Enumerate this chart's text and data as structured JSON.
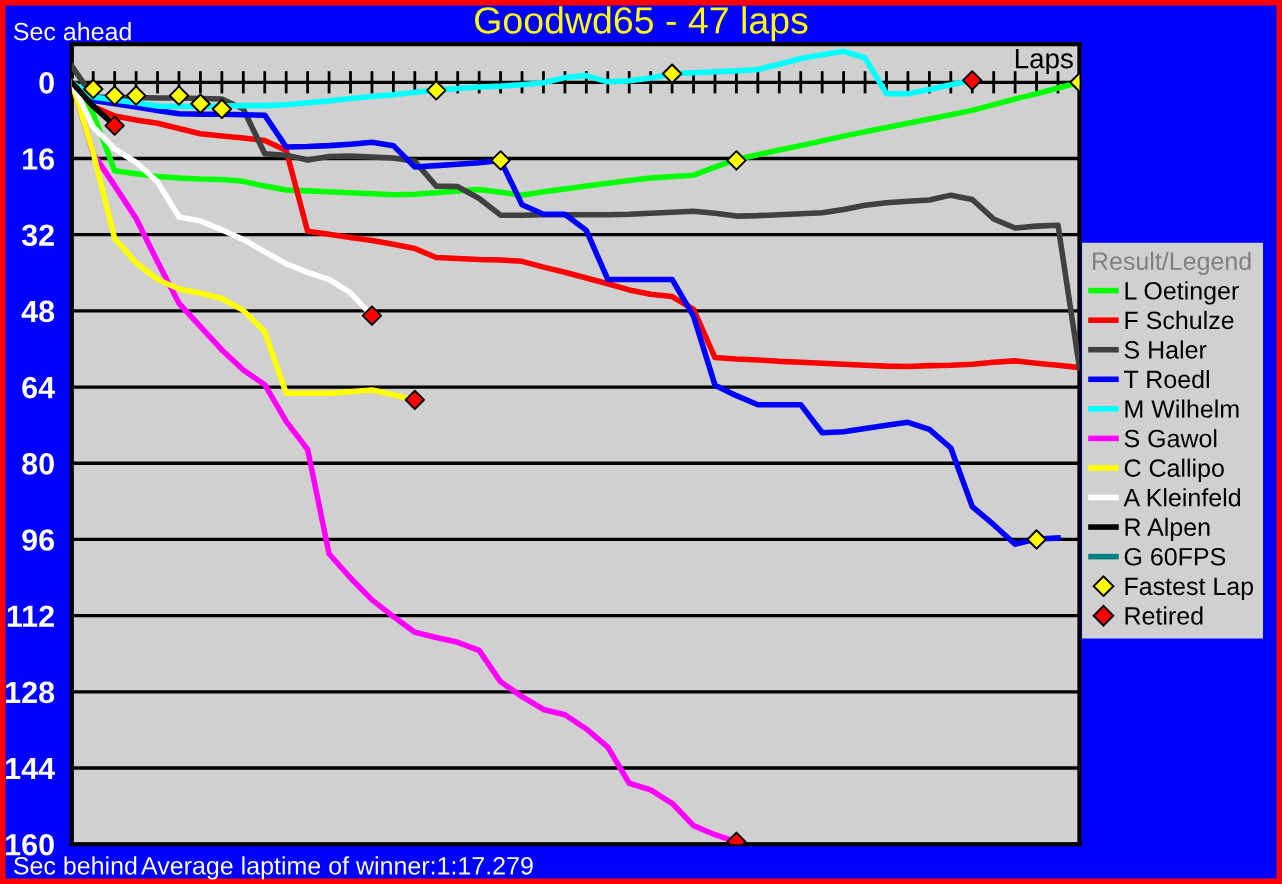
{
  "chart_data": {
    "type": "line",
    "title": "Goodwd65 - 47 laps",
    "xlabel": "Laps",
    "annotations": [
      "Sec ahead",
      "Sec behind",
      "Average laptime of winner:1:17.279"
    ],
    "categories": [
      null,
      null,
      null,
      null,
      null,
      null,
      null,
      null,
      null,
      null,
      null,
      null,
      null,
      null,
      null,
      null,
      null,
      null,
      null,
      null,
      null,
      null,
      null,
      null,
      null,
      null,
      null,
      null,
      null,
      null,
      null,
      null,
      null,
      null,
      null,
      null,
      null,
      null,
      null,
      null,
      null,
      null,
      null,
      null,
      null,
      null,
      null,
      null
    ],
    "ylim": [
      160,
      -8
    ],
    "yticks": [
      0,
      16,
      32,
      48,
      64,
      80,
      96,
      112,
      128,
      144,
      160
    ],
    "tick_labels": "y",
    "grid": "y",
    "legend": "right",
    "legend_title": "Result/Legend",
    "line_style": "solid",
    "series": [
      {
        "name": "L Oetinger",
        "color": "#00ff00",
        "values": [
          0,
          6.6,
          18.6,
          19.2,
          19.8,
          20.1,
          20.3,
          20.4,
          20.8,
          21.8,
          22.6,
          22.8,
          23.0,
          23.2,
          23.4,
          23.6,
          23.5,
          23.2,
          22.8,
          22.5,
          23.1,
          23.7,
          23.0,
          22.4,
          21.8,
          21.2,
          20.6,
          20.1,
          19.8,
          19.5,
          17.8,
          16.2,
          15.2,
          14.2,
          13.3,
          12.3,
          11.3,
          10.4,
          9.5,
          8.6,
          7.7,
          6.8,
          5.9,
          4.7,
          3.5,
          2.4,
          1.2,
          0
        ]
      },
      {
        "name": "F Schulze",
        "color": "#ff0000",
        "values": [
          0,
          5.1,
          7.1,
          7.9,
          8.6,
          9.7,
          10.8,
          11.3,
          11.7,
          12.2,
          14.3,
          31.3,
          31.9,
          32.6,
          33.2,
          34.0,
          34.9,
          36.8,
          37.0,
          37.2,
          37.3,
          37.6,
          38.8,
          39.9,
          41.1,
          42.3,
          43.6,
          44.5,
          45.0,
          47.7,
          57.8,
          58.1,
          58.3,
          58.6,
          58.8,
          59.0,
          59.2,
          59.4,
          59.6,
          59.7,
          59.5,
          59.4,
          59.2,
          58.8,
          58.5,
          59.0,
          59.4,
          59.9
        ]
      },
      {
        "name": "S Haler",
        "color": "#404040",
        "values": [
          -3.4,
          3.1,
          3.2,
          3.2,
          3.3,
          3.3,
          3.4,
          3.5,
          5.6,
          15.0,
          15.3,
          16.3,
          15.6,
          15.5,
          15.7,
          15.9,
          16.6,
          21.8,
          21.9,
          24.4,
          27.9,
          27.9,
          27.8,
          27.8,
          27.8,
          27.8,
          27.7,
          27.5,
          27.3,
          27.1,
          27.5,
          28.1,
          28.0,
          27.8,
          27.6,
          27.4,
          26.7,
          25.8,
          25.3,
          25.0,
          24.7,
          23.7,
          24.6,
          28.7,
          30.6,
          30.2,
          30.0,
          59.9
        ]
      },
      {
        "name": "T Roedl",
        "color": "#0000ff",
        "values": [
          0,
          3.8,
          4.5,
          5.2,
          5.9,
          6.6,
          6.7,
          6.7,
          6.8,
          6.9,
          13.6,
          13.5,
          13.3,
          13.0,
          12.6,
          13.3,
          17.8,
          17.5,
          17.2,
          16.9,
          16.4,
          25.7,
          27.7,
          27.7,
          31.1,
          41.4,
          41.4,
          41.4,
          41.4,
          49.1,
          63.6,
          65.8,
          67.7,
          67.7,
          67.7,
          73.6,
          73.4,
          72.7,
          72.0,
          71.4,
          72.9,
          76.8,
          89.1,
          92.9,
          97.0,
          95.9,
          95.7,
          null
        ]
      },
      {
        "name": "M Wilhelm",
        "color": "#00ffff",
        "values": [
          0,
          3.1,
          3.7,
          4.3,
          5.0,
          5.1,
          5.1,
          5.0,
          4.9,
          4.9,
          4.7,
          4.3,
          3.9,
          3.4,
          3.0,
          2.6,
          2.1,
          1.7,
          1.3,
          1.0,
          0.8,
          0.5,
          0.1,
          -1.0,
          -1.4,
          -0.1,
          -0.3,
          -0.9,
          -1.8,
          -2.0,
          -2.2,
          -2.4,
          -2.7,
          -3.8,
          -5.0,
          -5.8,
          -6.5,
          -5.1,
          2.4,
          2.4,
          1.5,
          0.5,
          -0.4,
          null,
          null,
          null,
          null,
          null
        ]
      },
      {
        "name": "S Gawol",
        "color": "#ff00ff",
        "values": [
          0,
          15.0,
          21.7,
          28.6,
          37.7,
          46.4,
          51.3,
          56.2,
          60.4,
          63.5,
          71.2,
          77.1,
          99.0,
          104.1,
          108.7,
          112.2,
          115.5,
          116.6,
          117.6,
          119.3,
          125.9,
          129.0,
          131.7,
          132.8,
          135.8,
          139.6,
          147.2,
          148.6,
          151.4,
          156.1,
          158.0,
          159.5,
          null,
          null,
          null,
          null,
          null,
          null,
          null,
          null,
          null,
          null,
          null,
          null,
          null,
          null,
          null,
          null
        ]
      },
      {
        "name": "C Callipo",
        "color": "#ffff00",
        "values": [
          0,
          14.8,
          32.8,
          37.9,
          41.4,
          43.4,
          44.3,
          45.4,
          47.9,
          52.4,
          65.3,
          65.3,
          65.3,
          65.0,
          64.6,
          65.6,
          66.7,
          null,
          null,
          null,
          null,
          null,
          null,
          null,
          null,
          null,
          null,
          null,
          null,
          null,
          null,
          null,
          null,
          null,
          null,
          null,
          null,
          null,
          null,
          null,
          null,
          null,
          null,
          null,
          null,
          null,
          null,
          null
        ]
      },
      {
        "name": "A Kleinfeld",
        "color": "#ffffff",
        "values": [
          0,
          9.4,
          14.0,
          16.8,
          20.9,
          28.3,
          29.1,
          31.0,
          33.0,
          35.6,
          38.1,
          39.9,
          41.4,
          44.2,
          49.0,
          null,
          null,
          null,
          null,
          null,
          null,
          null,
          null,
          null,
          null,
          null,
          null,
          null,
          null,
          null,
          null,
          null,
          null,
          null,
          null,
          null,
          null,
          null,
          null,
          null,
          null,
          null,
          null,
          null,
          null,
          null,
          null,
          null
        ]
      },
      {
        "name": "R Alpen",
        "color": "#000000",
        "values": [
          0,
          5.0,
          9.1,
          null,
          null,
          null,
          null,
          null,
          null,
          null,
          null,
          null,
          null,
          null,
          null,
          null,
          null,
          null,
          null,
          null,
          null,
          null,
          null,
          null,
          null,
          null,
          null,
          null,
          null,
          null,
          null,
          null,
          null,
          null,
          null,
          null,
          null,
          null,
          null,
          null,
          null,
          null,
          null,
          null,
          null,
          null,
          null,
          null
        ]
      },
      {
        "name": "G 60FPS",
        "color": "#008080",
        "values": [
          null,
          null,
          null,
          null,
          null,
          null,
          null,
          null,
          null,
          null,
          null,
          null,
          null,
          null,
          null,
          null,
          null,
          null,
          null,
          null,
          null,
          null,
          null,
          null,
          null,
          null,
          null,
          null,
          null,
          null,
          null,
          null,
          null,
          null,
          null,
          null,
          null,
          null,
          null,
          null,
          null,
          null,
          null,
          null,
          null,
          null,
          null,
          null
        ]
      },
      {
        "name": "Fastest Lap",
        "type": "scatter",
        "marker": "diamond",
        "color": "#ffff00",
        "values": [
          null,
          1.4,
          2.8,
          2.8,
          null,
          2.8,
          4.5,
          5.6,
          null,
          null,
          null,
          null,
          null,
          null,
          null,
          null,
          null,
          1.7,
          null,
          null,
          16.4,
          null,
          null,
          null,
          null,
          null,
          null,
          null,
          -1.8,
          null,
          null,
          16.4,
          null,
          null,
          null,
          null,
          null,
          null,
          null,
          null,
          null,
          null,
          null,
          null,
          null,
          96,
          null,
          0
        ]
      },
      {
        "name": "Retired",
        "type": "scatter",
        "marker": "diamond",
        "color": "#ff0000",
        "values": [
          null,
          null,
          9.1,
          null,
          null,
          null,
          null,
          null,
          null,
          null,
          null,
          null,
          null,
          null,
          49,
          null,
          66.7,
          null,
          null,
          null,
          null,
          null,
          null,
          null,
          null,
          null,
          null,
          null,
          null,
          null,
          null,
          159.5,
          null,
          null,
          null,
          null,
          null,
          null,
          null,
          null,
          null,
          null,
          -0.4,
          null,
          null,
          null,
          null,
          null
        ]
      }
    ]
  }
}
